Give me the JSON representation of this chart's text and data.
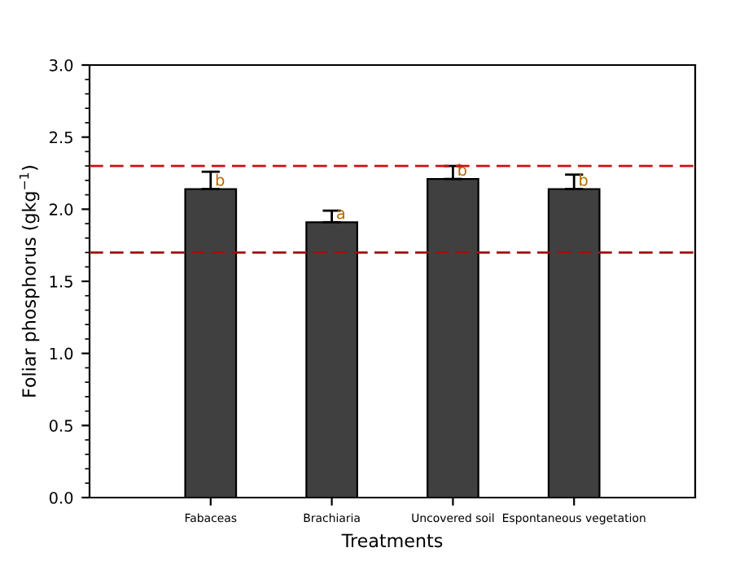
{
  "chart_data": {
    "type": "bar",
    "xlabel": "Treatments",
    "ylabel": "Foliar phosphorus (gkg$^{−1}$)",
    "categories": [
      "Fabaceas",
      "Brachiaria",
      "Uncovered soil",
      "Espontaneous vegetation"
    ],
    "values": [
      2.14,
      1.91,
      2.21,
      2.14
    ],
    "errors": [
      [
        2.14,
        2.26
      ],
      [
        1.91,
        1.99
      ],
      [
        2.21,
        2.3
      ],
      [
        2.14,
        2.24
      ]
    ],
    "color": "#404040",
    "ylim": [
      0,
      3
    ],
    "yticks": [
      {
        "value": 0,
        "label": "0.0"
      },
      {
        "value": 0.5,
        "label": "0.5"
      },
      {
        "value": 1,
        "label": "1.0"
      },
      {
        "value": 1.5,
        "label": "1.5"
      },
      {
        "value": 2,
        "label": "2.0"
      },
      {
        "value": 2.5,
        "label": "2.5"
      },
      {
        "value": 3,
        "label": "3.0"
      }
    ],
    "ref_lines": [
      {
        "axis": "y",
        "value": 2.3,
        "color": "#cc1111",
        "line_style": "dashed"
      },
      {
        "axis": "y",
        "value": 1.7,
        "color": "#a01010",
        "line_style": "dashed"
      }
    ],
    "annotations": [
      {
        "text": "b",
        "x": "Fabaceas",
        "y": 2.14
      },
      {
        "text": "a",
        "x": "Brachiaria",
        "y": 1.91
      },
      {
        "text": "b",
        "x": "Uncovered soil",
        "y": 2.21
      },
      {
        "text": "b",
        "x": "Espontaneous vegetation",
        "y": 2.14
      }
    ]
  }
}
